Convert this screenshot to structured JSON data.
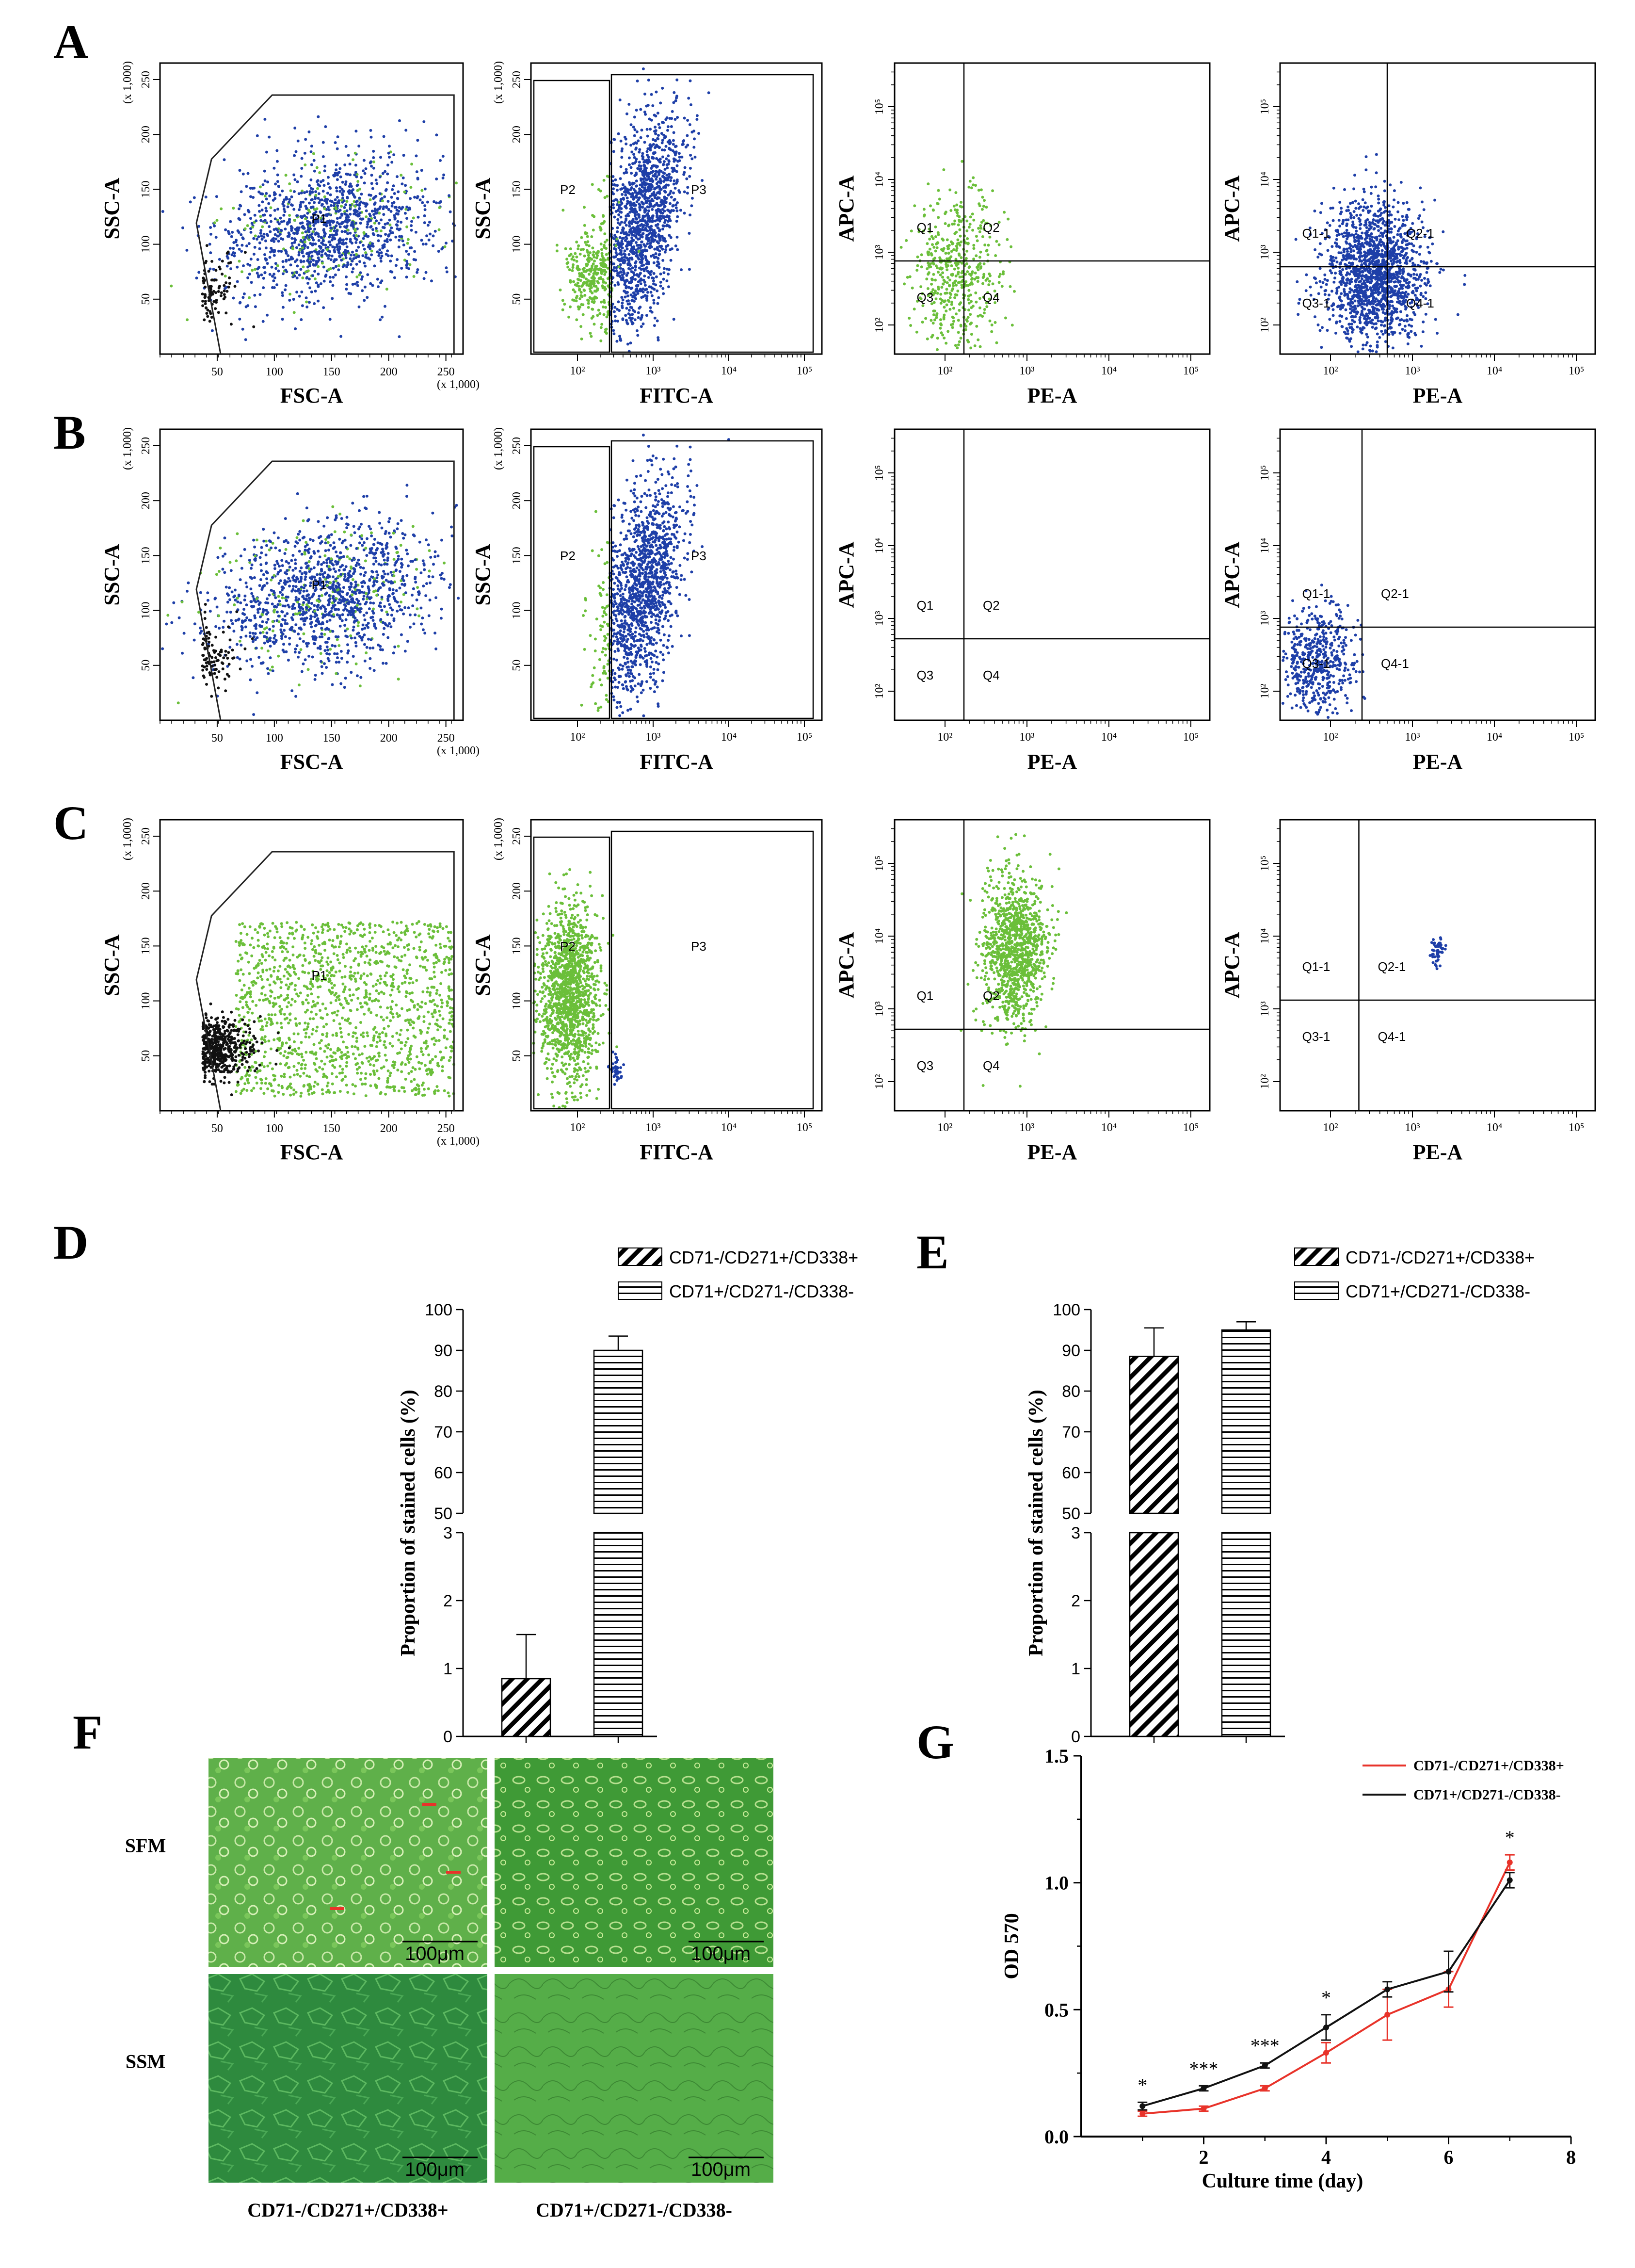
{
  "panels": {
    "A": "A",
    "B": "B",
    "C": "C",
    "D": "D",
    "E": "E",
    "F": "F",
    "G": "G"
  },
  "flow": {
    "scatter_axes": {
      "x": "FSC-A",
      "y": "SSC-A",
      "scale": "(x 1,000)",
      "ticks": [
        "50",
        "100",
        "150",
        "200",
        "250"
      ]
    },
    "fitc_axes": {
      "x": "FITC-A",
      "y": "SSC-A"
    },
    "quad_axes": {
      "x": "PE-A",
      "y": "APC-A"
    },
    "log_ticks": [
      "10²",
      "10³",
      "10⁴",
      "10⁵"
    ],
    "gates": {
      "p1": "P1",
      "p2": "P2",
      "p3": "P3"
    },
    "quadrants": [
      "Q1",
      "Q2",
      "Q3",
      "Q4"
    ],
    "quadrants_1": [
      "Q1-1",
      "Q2-1",
      "Q3-1",
      "Q4-1"
    ],
    "colors": {
      "green": "#6bbf3a",
      "blue": "#1e3fa8",
      "black": "#111111"
    }
  },
  "bar_charts": {
    "legend": [
      "CD71-/CD271+/CD338+",
      "CD71+/CD271-/CD338-"
    ],
    "ylabel": "Proportion of stained cells (%)",
    "upper_ticks": [
      "100",
      "90",
      "80",
      "70",
      "60",
      "50"
    ],
    "lower_ticks": [
      "3",
      "2",
      "1",
      "0"
    ]
  },
  "micrographs": {
    "rows": [
      "SFM",
      "SSM"
    ],
    "cols": [
      "CD71-/CD271+/CD338+",
      "CD71+/CD271-/CD338-"
    ],
    "scale_bar": "100μm"
  },
  "chart_data": [
    {
      "type": "bar",
      "panel": "D",
      "categories": [
        "CD71-/CD271+/CD338+",
        "CD71+/CD271-/CD338-"
      ],
      "values": [
        0.85,
        90
      ],
      "errors": [
        0.65,
        3.5
      ],
      "ylabel": "Proportion of stained cells (%)",
      "axis_break": [
        3,
        50
      ],
      "ylim": [
        0,
        100
      ]
    },
    {
      "type": "bar",
      "panel": "E",
      "categories": [
        "CD71-/CD271+/CD338+",
        "CD71+/CD271-/CD338-"
      ],
      "values": [
        88.5,
        95
      ],
      "errors": [
        7,
        2
      ],
      "ylabel": "Proportion of stained cells (%)",
      "axis_break": [
        3,
        50
      ],
      "ylim": [
        0,
        100
      ]
    },
    {
      "type": "line",
      "panel": "G",
      "xlabel": "Culture time (day)",
      "ylabel": "OD 570",
      "xlim": [
        0,
        8
      ],
      "ylim": [
        0,
        1.5
      ],
      "xticks": [
        "2",
        "4",
        "6",
        "8"
      ],
      "yticks": [
        "0.0",
        "0.5",
        "1.0",
        "1.5"
      ],
      "x": [
        1,
        2,
        3,
        4,
        5,
        6,
        7
      ],
      "series": [
        {
          "name": "CD71-/CD271+/CD338+",
          "color": "#e8332a",
          "values": [
            0.09,
            0.11,
            0.19,
            0.33,
            0.48,
            0.58,
            1.08
          ],
          "errors": [
            0.01,
            0.01,
            0.01,
            0.04,
            0.1,
            0.07,
            0.03
          ]
        },
        {
          "name": "CD71+/CD271-/CD338-",
          "color": "#111111",
          "values": [
            0.12,
            0.19,
            0.28,
            0.43,
            0.58,
            0.65,
            1.01
          ],
          "errors": [
            0.015,
            0.01,
            0.01,
            0.05,
            0.03,
            0.08,
            0.03
          ]
        }
      ],
      "significance": [
        "*",
        "***",
        "***",
        "*",
        "",
        "",
        "*"
      ]
    }
  ]
}
